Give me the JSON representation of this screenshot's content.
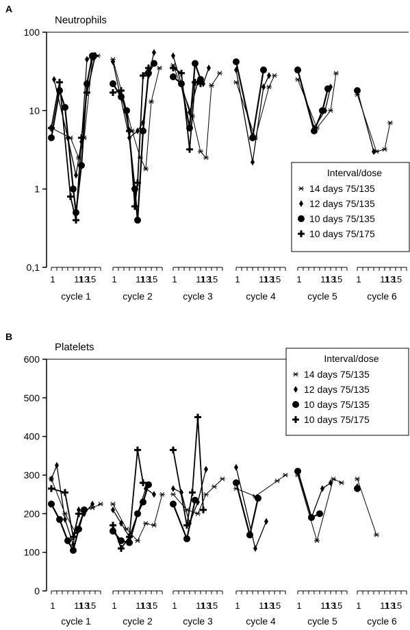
{
  "figure": {
    "panel_a_letter": "A",
    "panel_b_letter": "B"
  },
  "chart_data": [
    {
      "type": "line",
      "title": "Neutrophils",
      "scale": "log",
      "ylim": [
        0.1,
        100
      ],
      "yticks": [
        "0,1",
        "1",
        "10",
        "100"
      ],
      "ytick_values": [
        0.1,
        1,
        10,
        100
      ],
      "groups": [
        "cycle 1",
        "cycle 2",
        "cycle 3",
        "cycle 4",
        "cycle 5",
        "cycle 6"
      ],
      "day_ticks": [
        "1",
        "11",
        "13",
        "15"
      ],
      "day_range": [
        1,
        19
      ],
      "grid": false,
      "legend": {
        "title": "Interval/dose",
        "placement": "lower-right"
      },
      "series": [
        {
          "name": "14 days 75/135",
          "marker": "star",
          "cycles": [
            [
              [
                1,
                6.0
              ],
              [
                8,
                4.5
              ],
              [
                11,
                2.5
              ],
              [
                13,
                4.5
              ],
              [
                16,
                45
              ],
              [
                18,
                50
              ]
            ],
            [
              [
                1,
                45
              ],
              [
                8,
                5.5
              ],
              [
                11,
                2.5
              ],
              [
                13,
                1.8
              ],
              [
                15,
                13
              ],
              [
                18,
                35
              ]
            ],
            [
              [
                1,
                38
              ],
              [
                8,
                8.5
              ],
              [
                11,
                3.0
              ],
              [
                13,
                2.5
              ],
              [
                15,
                21
              ],
              [
                18,
                30
              ]
            ],
            [
              [
                1,
                23
              ],
              [
                8,
                4.5
              ],
              [
                13,
                20
              ],
              [
                15,
                28
              ]
            ],
            [
              [
                1,
                25
              ],
              [
                8,
                6.0
              ],
              [
                13,
                10
              ],
              [
                15,
                30
              ]
            ],
            [
              [
                1,
                16
              ],
              [
                8,
                3.0
              ],
              [
                11,
                3.2
              ],
              [
                13,
                7.0
              ]
            ]
          ]
        },
        {
          "name": "12 days 75/135",
          "marker": "diamond",
          "cycles": [
            [
              [
                2,
                25
              ],
              [
                7,
                4.5
              ],
              [
                10,
                1.5
              ],
              [
                12,
                4.0
              ],
              [
                14,
                45
              ],
              [
                16,
                50
              ]
            ],
            [
              [
                1,
                42
              ],
              [
                7,
                4.5
              ],
              [
                10,
                5.5
              ],
              [
                12,
                7.0
              ],
              [
                14,
                28
              ],
              [
                16,
                55
              ]
            ],
            [
              [
                1,
                50
              ],
              [
                7,
                9.5
              ],
              [
                10,
                23
              ],
              [
                12,
                22
              ],
              [
                14,
                35
              ]
            ],
            [
              [
                1,
                33
              ],
              [
                7,
                2.2
              ],
              [
                11,
                20
              ],
              [
                13,
                28
              ]
            ],
            [
              [
                1,
                33
              ],
              [
                7,
                6.0
              ],
              [
                11,
                10
              ],
              [
                13,
                20
              ]
            ],
            [
              [
                1,
                18
              ],
              [
                7,
                3.0
              ]
            ]
          ]
        },
        {
          "name": "10 days 75/135",
          "marker": "circle",
          "cycles": [
            [
              [
                1,
                4.5
              ],
              [
                4,
                18
              ],
              [
                6,
                11
              ],
              [
                9,
                1.0
              ],
              [
                10,
                0.5
              ],
              [
                12,
                2.0
              ],
              [
                14,
                22
              ],
              [
                16,
                50
              ]
            ],
            [
              [
                1,
                22
              ],
              [
                4,
                15
              ],
              [
                6,
                10
              ],
              [
                9,
                1.0
              ],
              [
                10,
                0.4
              ],
              [
                12,
                5.5
              ],
              [
                14,
                30
              ],
              [
                16,
                40
              ]
            ],
            [
              [
                1,
                27
              ],
              [
                4,
                22
              ],
              [
                7,
                6.0
              ],
              [
                9,
                40
              ],
              [
                11,
                25
              ]
            ],
            [
              [
                1,
                42
              ],
              [
                7,
                4.5
              ],
              [
                11,
                33
              ]
            ],
            [
              [
                1,
                33
              ],
              [
                7,
                5.5
              ],
              [
                10,
                10
              ],
              [
                12,
                19
              ]
            ],
            [
              [
                1,
                18
              ]
            ]
          ]
        },
        {
          "name": "10 days 75/175",
          "marker": "plus",
          "cycles": [
            [
              [
                1,
                6.0
              ],
              [
                4,
                23
              ],
              [
                8,
                0.8
              ],
              [
                10,
                0.4
              ],
              [
                12,
                4.5
              ],
              [
                14,
                17
              ],
              [
                17,
                50
              ]
            ],
            [
              [
                1,
                17
              ],
              [
                4,
                18
              ],
              [
                7,
                5.5
              ],
              [
                9,
                0.6
              ],
              [
                10,
                1.2
              ],
              [
                12,
                28
              ],
              [
                14,
                35
              ]
            ],
            [
              [
                1,
                35
              ],
              [
                4,
                30
              ],
              [
                7,
                3.2
              ],
              [
                9,
                23
              ],
              [
                11,
                22
              ]
            ]
          ]
        }
      ]
    },
    {
      "type": "line",
      "title": "Platelets",
      "scale": "linear",
      "ylim": [
        0,
        600
      ],
      "yticks": [
        "0",
        "100",
        "200",
        "300",
        "400",
        "500",
        "600"
      ],
      "ytick_values": [
        0,
        100,
        200,
        300,
        400,
        500,
        600
      ],
      "groups": [
        "cycle 1",
        "cycle 2",
        "cycle 3",
        "cycle 4",
        "cycle 5",
        "cycle 6"
      ],
      "day_ticks": [
        "1",
        "11",
        "13",
        "15"
      ],
      "day_range": [
        1,
        19
      ],
      "grid": false,
      "legend": {
        "title": "Interval/dose",
        "placement": "top-right"
      },
      "series": [
        {
          "name": "14 days 75/135",
          "marker": "star",
          "cycles": [
            [
              [
                1,
                290
              ],
              [
                6,
                200
              ],
              [
                10,
                150
              ],
              [
                13,
                210
              ],
              [
                16,
                215
              ],
              [
                19,
                225
              ]
            ],
            [
              [
                1,
                225
              ],
              [
                6,
                160
              ],
              [
                10,
                130
              ],
              [
                13,
                175
              ],
              [
                16,
                170
              ],
              [
                19,
                250
              ]
            ],
            [
              [
                1,
                250
              ],
              [
                6,
                210
              ],
              [
                10,
                200
              ],
              [
                13,
                250
              ],
              [
                16,
                270
              ],
              [
                19,
                290
              ]
            ],
            [
              [
                1,
                265
              ],
              [
                8,
                245
              ],
              [
                16,
                285
              ],
              [
                19,
                300
              ]
            ],
            [
              [
                1,
                300
              ],
              [
                8,
                130
              ],
              [
                14,
                290
              ],
              [
                17,
                280
              ]
            ],
            [
              [
                1,
                290
              ],
              [
                8,
                145
              ]
            ]
          ]
        },
        {
          "name": "12 days 75/135",
          "marker": "diamond",
          "cycles": [
            [
              [
                1,
                290
              ],
              [
                3,
                325
              ],
              [
                6,
                185
              ],
              [
                9,
                120
              ],
              [
                11,
                210
              ],
              [
                13,
                200
              ],
              [
                16,
                225
              ]
            ],
            [
              [
                1,
                210
              ],
              [
                4,
                175
              ],
              [
                7,
                140
              ],
              [
                10,
                200
              ],
              [
                13,
                265
              ],
              [
                16,
                250
              ]
            ],
            [
              [
                1,
                265
              ],
              [
                4,
                255
              ],
              [
                7,
                175
              ],
              [
                10,
                230
              ],
              [
                13,
                315
              ]
            ],
            [
              [
                1,
                320
              ],
              [
                8,
                110
              ],
              [
                12,
                180
              ]
            ],
            [
              [
                1,
                310
              ],
              [
                6,
                190
              ],
              [
                10,
                265
              ],
              [
                13,
                280
              ]
            ],
            [
              [
                1,
                270
              ]
            ]
          ]
        },
        {
          "name": "10 days 75/135",
          "marker": "circle",
          "cycles": [
            [
              [
                1,
                225
              ],
              [
                4,
                185
              ],
              [
                7,
                130
              ],
              [
                9,
                105
              ],
              [
                11,
                160
              ],
              [
                13,
                210
              ]
            ],
            [
              [
                1,
                155
              ],
              [
                4,
                130
              ],
              [
                7,
                125
              ],
              [
                10,
                200
              ],
              [
                12,
                230
              ],
              [
                14,
                275
              ]
            ],
            [
              [
                1,
                225
              ],
              [
                6,
                135
              ],
              [
                9,
                235
              ]
            ],
            [
              [
                1,
                280
              ],
              [
                6,
                145
              ],
              [
                9,
                240
              ]
            ],
            [
              [
                1,
                310
              ],
              [
                6,
                190
              ],
              [
                9,
                200
              ]
            ],
            [
              [
                1,
                265
              ]
            ]
          ]
        },
        {
          "name": "10 days 75/175",
          "marker": "plus",
          "cycles": [
            [
              [
                1,
                265
              ],
              [
                6,
                255
              ],
              [
                9,
                140
              ],
              [
                11,
                200
              ]
            ],
            [
              [
                1,
                170
              ],
              [
                4,
                110
              ],
              [
                7,
                140
              ],
              [
                10,
                365
              ],
              [
                12,
                280
              ]
            ],
            [
              [
                1,
                365
              ],
              [
                6,
                170
              ],
              [
                8,
                255
              ],
              [
                10,
                450
              ],
              [
                12,
                210
              ]
            ]
          ]
        }
      ]
    }
  ]
}
